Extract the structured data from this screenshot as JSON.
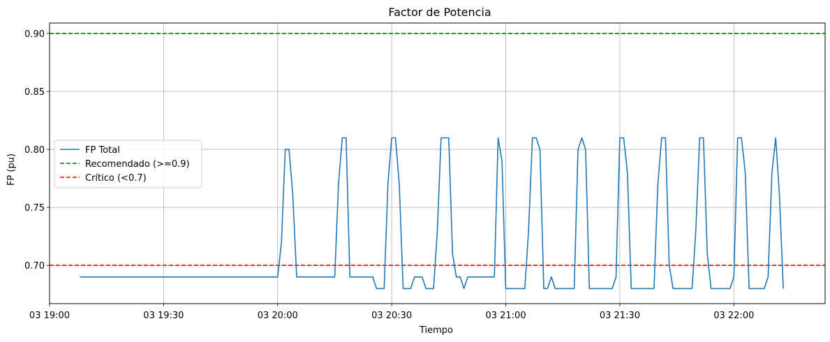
{
  "chart_data": {
    "type": "line",
    "title": "Factor de Potencia",
    "xlabel": "Tiempo",
    "ylabel": "FP (pu)",
    "xlim": [
      "19:00",
      "22:24"
    ],
    "ylim": [
      0.667,
      0.909
    ],
    "x_ticks": [
      "03 19:00",
      "03 19:30",
      "03 20:00",
      "03 20:30",
      "03 21:00",
      "03 21:30",
      "03 22:00"
    ],
    "x_tick_times": [
      "19:00",
      "19:30",
      "20:00",
      "20:30",
      "21:00",
      "21:30",
      "22:00"
    ],
    "y_ticks": [
      0.7,
      0.75,
      0.8,
      0.85,
      0.9
    ],
    "y_tick_labels": [
      "0.70",
      "0.75",
      "0.80",
      "0.85",
      "0.90"
    ],
    "grid": true,
    "legend_position": "center-left",
    "series": [
      {
        "name": "FP Total",
        "color": "#1f77b4",
        "style": "solid",
        "x": [
          "19:08",
          "20:00",
          "20:01",
          "20:02",
          "20:03",
          "20:04",
          "20:05",
          "20:15",
          "20:16",
          "20:17",
          "20:18",
          "20:19",
          "20:20",
          "20:25",
          "20:26",
          "20:27",
          "20:28",
          "20:29",
          "20:30",
          "20:31",
          "20:32",
          "20:33",
          "20:34",
          "20:35",
          "20:36",
          "20:37",
          "20:38",
          "20:39",
          "20:40",
          "20:41",
          "20:42",
          "20:43",
          "20:44",
          "20:45",
          "20:46",
          "20:47",
          "20:48",
          "20:49",
          "20:50",
          "20:51",
          "20:52",
          "20:53",
          "20:57",
          "20:58",
          "20:59",
          "21:00",
          "21:01",
          "21:05",
          "21:06",
          "21:07",
          "21:08",
          "21:09",
          "21:10",
          "21:11",
          "21:12",
          "21:13",
          "21:14",
          "21:15",
          "21:18",
          "21:19",
          "21:20",
          "21:21",
          "21:22",
          "21:28",
          "21:29",
          "21:30",
          "21:31",
          "21:32",
          "21:33",
          "21:34",
          "21:39",
          "21:40",
          "21:41",
          "21:42",
          "21:43",
          "21:44",
          "21:49",
          "21:50",
          "21:51",
          "21:52",
          "21:53",
          "21:54",
          "21:59",
          "22:00",
          "22:01",
          "22:02",
          "22:03",
          "22:04",
          "22:08",
          "22:09",
          "22:10",
          "22:11",
          "22:12",
          "22:13"
        ],
        "y": [
          0.69,
          0.69,
          0.72,
          0.8,
          0.8,
          0.76,
          0.69,
          0.69,
          0.77,
          0.81,
          0.81,
          0.69,
          0.69,
          0.69,
          0.68,
          0.68,
          0.68,
          0.77,
          0.81,
          0.81,
          0.77,
          0.68,
          0.68,
          0.68,
          0.69,
          0.69,
          0.69,
          0.68,
          0.68,
          0.68,
          0.73,
          0.81,
          0.81,
          0.81,
          0.71,
          0.69,
          0.69,
          0.68,
          0.69,
          0.69,
          0.69,
          0.69,
          0.69,
          0.81,
          0.79,
          0.68,
          0.68,
          0.68,
          0.73,
          0.81,
          0.81,
          0.8,
          0.68,
          0.68,
          0.69,
          0.68,
          0.68,
          0.68,
          0.68,
          0.8,
          0.81,
          0.8,
          0.68,
          0.68,
          0.69,
          0.81,
          0.81,
          0.78,
          0.68,
          0.68,
          0.68,
          0.77,
          0.81,
          0.81,
          0.7,
          0.68,
          0.68,
          0.73,
          0.81,
          0.81,
          0.71,
          0.68,
          0.68,
          0.69,
          0.81,
          0.81,
          0.78,
          0.68,
          0.68,
          0.69,
          0.78,
          0.81,
          0.76,
          0.68
        ]
      },
      {
        "name": "Recomendado (>=0.9)",
        "color": "#008000",
        "style": "dashed",
        "y_const": 0.9
      },
      {
        "name": "Crítico (<0.7)",
        "color": "#ff0000",
        "style": "dashed",
        "y_const": 0.7
      }
    ]
  }
}
